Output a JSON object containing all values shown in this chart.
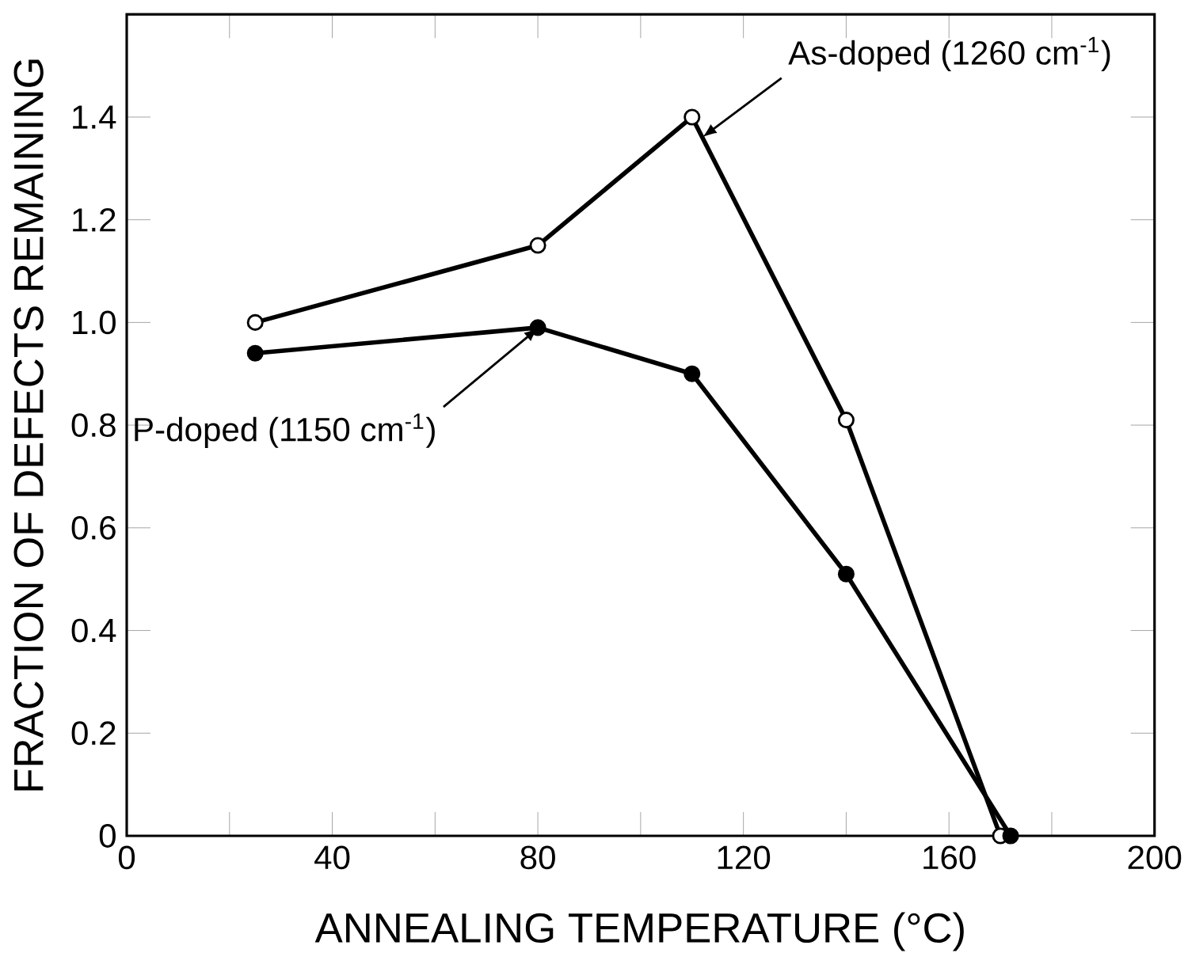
{
  "chart_data": {
    "type": "line",
    "xlabel": "ANNEALING TEMPERATURE (°C)",
    "ylabel": "FRACTION OF DEFECTS REMAINING",
    "xlim": [
      0,
      200
    ],
    "ylim": [
      0,
      1.6
    ],
    "xticks": [
      0,
      {
        "value": 20,
        "label": null
      },
      40,
      {
        "value": 60,
        "label": null
      },
      80,
      {
        "value": 100,
        "label": null
      },
      120,
      {
        "value": 140,
        "label": null
      },
      160,
      {
        "value": 180,
        "label": null
      },
      200
    ],
    "yticks": [
      0,
      0.2,
      0.4,
      0.6,
      0.8,
      {
        "value": 1,
        "label": "1.0"
      },
      1.2,
      1.4
    ],
    "marker": "circle",
    "line_style": "solid",
    "grid": false,
    "legend": false,
    "series": [
      {
        "name": "As-doped (1260 cm$^{-1}$)",
        "color": "#000000",
        "x": [
          25,
          80,
          110,
          140,
          170
        ],
        "values": [
          1.0,
          1.15,
          1.4,
          0.81,
          0
        ]
      },
      {
        "name": "P-doped (1150 cm$^{-1}$)",
        "color": "#000000",
        "x": [
          25,
          80,
          110,
          140,
          172
        ],
        "values": [
          0.94,
          0.99,
          0.9,
          0.51,
          0
        ]
      }
    ]
  }
}
